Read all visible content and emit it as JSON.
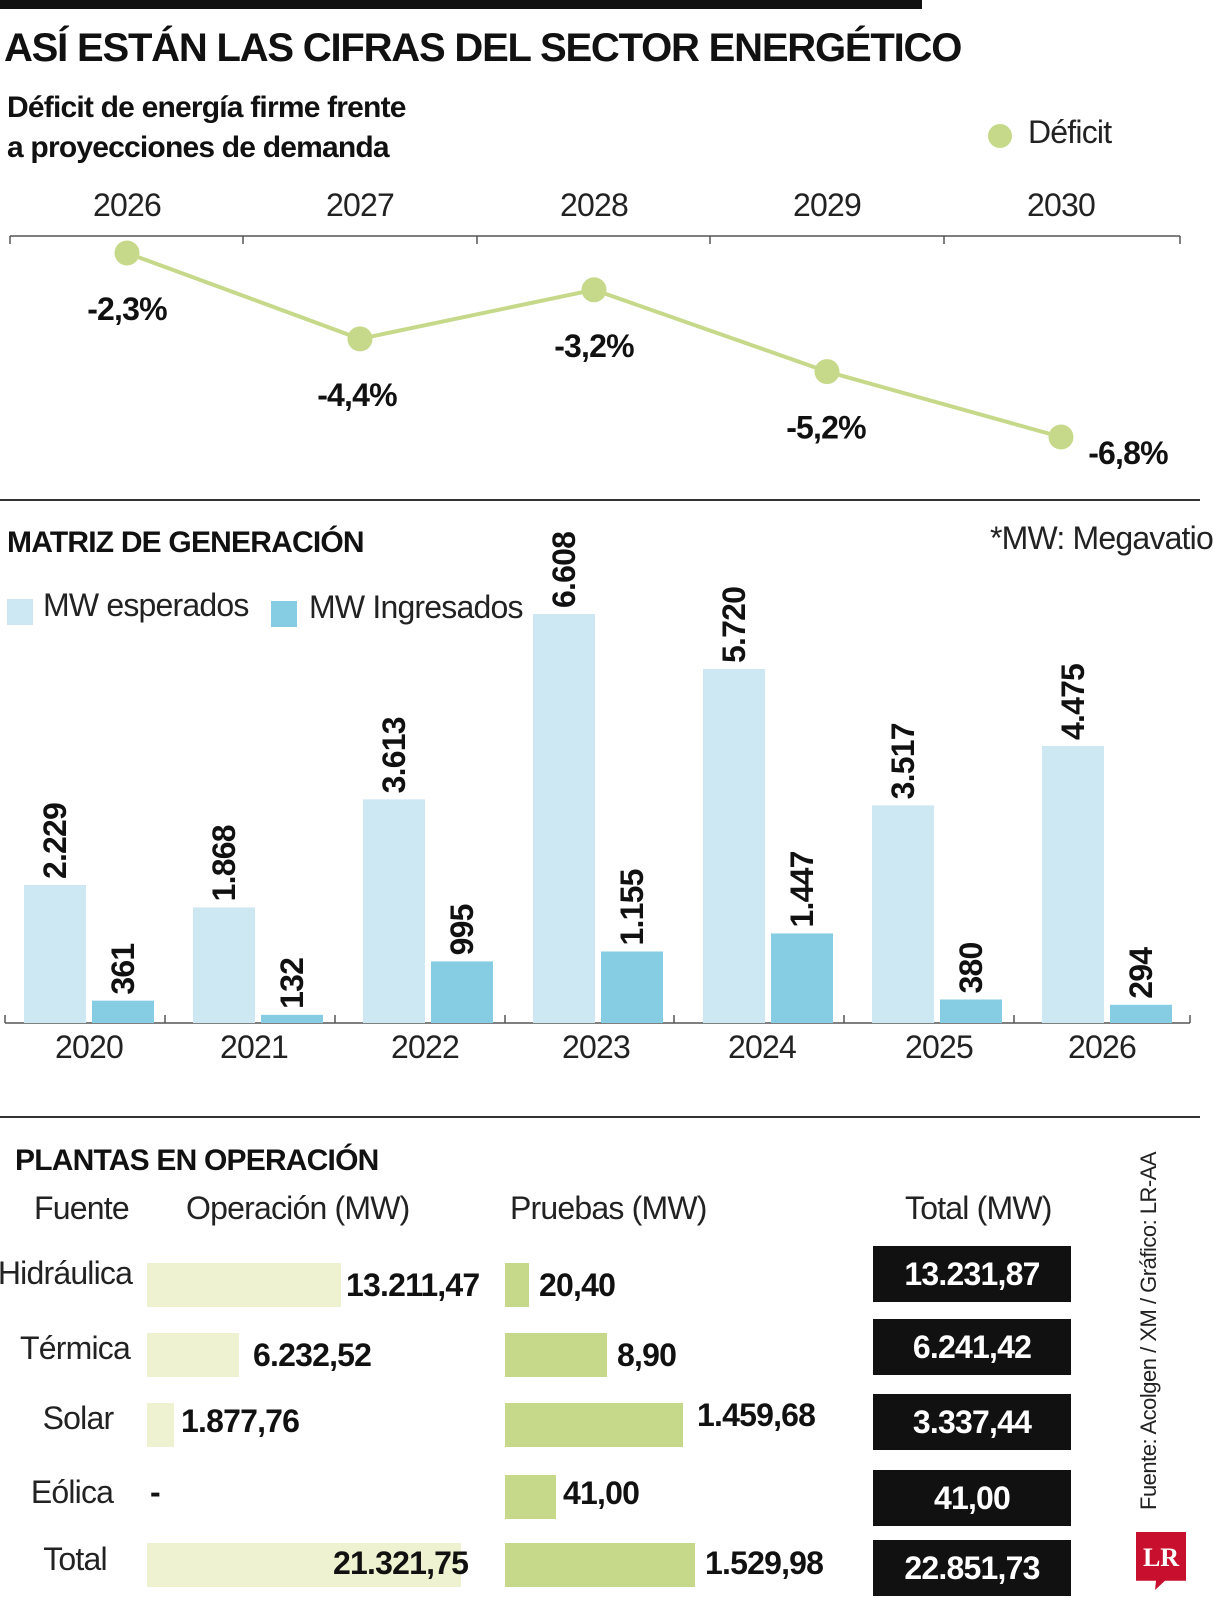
{
  "header": {
    "title": "ASÍ ESTÁN LAS CIFRAS DEL SECTOR ENERGÉTICO"
  },
  "deficit_section": {
    "subtitle_line1": "Déficit de energía firme frente",
    "subtitle_line2": "a proyecciones de demanda",
    "legend_label": "Déficit",
    "color": "#c6d98a"
  },
  "matrix_section": {
    "title": "MATRIZ DE GENERACIÓN",
    "note": "*MW: Megavatio",
    "legend_expected": "MW esperados",
    "legend_entered": "MW Ingresados",
    "color_expected": "#cde8f3",
    "color_entered": "#86cde3"
  },
  "plants_section": {
    "title": "PLANTAS EN OPERACIÓN",
    "headers": [
      "Fuente",
      "Operación (MW)",
      "Pruebas (MW)",
      "Total (MW)"
    ],
    "rows": [
      {
        "source": "Hidráulica",
        "operation": "13.211,47",
        "tests": "20,40",
        "total": "13.231,87"
      },
      {
        "source": "Térmica",
        "operation": "6.232,52",
        "tests": "8,90",
        "total": "6.241,42"
      },
      {
        "source": "Solar",
        "operation": "1.877,76",
        "tests": "1.459,68",
        "total": "3.337,44"
      },
      {
        "source": "Eólica",
        "operation": "-",
        "tests": "41,00",
        "total": "41,00"
      },
      {
        "source": "Total",
        "operation": "21.321,75",
        "tests": "1.529,98",
        "total": "22.851,73"
      }
    ],
    "color_operation": "#eef2d0",
    "color_tests": "#c6d98a"
  },
  "footer": {
    "source": "Fuente: Acolgen / XM / Gráfico: LR-AA",
    "logo": "LR",
    "logo_color": "#c8102e"
  },
  "chart_data": [
    {
      "type": "line",
      "x": [
        "2026",
        "2027",
        "2028",
        "2029",
        "2030"
      ],
      "series": [
        {
          "name": "Déficit",
          "values": [
            -2.3,
            -4.4,
            -3.2,
            -5.2,
            -6.8
          ],
          "labels": [
            "-2,3%",
            "-4,4%",
            "-3,2%",
            "-5,2%",
            "-6,8%"
          ]
        }
      ],
      "title": "Déficit de energía firme frente a proyecciones de demanda",
      "legend": "top-right",
      "grid": false
    },
    {
      "type": "bar",
      "categories": [
        "2020",
        "2021",
        "2022",
        "2023",
        "2024",
        "2025",
        "2026"
      ],
      "series": [
        {
          "name": "MW esperados",
          "values": [
            2229,
            1868,
            3613,
            6608,
            5720,
            3517,
            4475
          ],
          "labels": [
            "2.229",
            "1.868",
            "3.613",
            "6.608",
            "5.720",
            "3.517",
            "4.475"
          ]
        },
        {
          "name": "MW Ingresados",
          "values": [
            361,
            132,
            995,
            1155,
            1447,
            380,
            294
          ],
          "labels": [
            "361",
            "132",
            "995",
            "1.155",
            "1.447",
            "380",
            "294"
          ]
        }
      ],
      "title": "MATRIZ DE GENERACIÓN",
      "ylim": [
        0,
        6608
      ],
      "legend": "top-left",
      "grid": false
    },
    {
      "type": "bar",
      "categories": [
        "Hidráulica",
        "Térmica",
        "Solar",
        "Eólica",
        "Total"
      ],
      "series": [
        {
          "name": "Operación (MW)",
          "values": [
            13211.47,
            6232.52,
            1877.76,
            0,
            21321.75
          ]
        },
        {
          "name": "Pruebas (MW)",
          "values": [
            20.4,
            8.9,
            1459.68,
            41.0,
            1529.98
          ]
        },
        {
          "name": "Total (MW)",
          "values": [
            13231.87,
            6241.42,
            3337.44,
            41.0,
            22851.73
          ]
        }
      ],
      "title": "PLANTAS EN OPERACIÓN"
    }
  ]
}
